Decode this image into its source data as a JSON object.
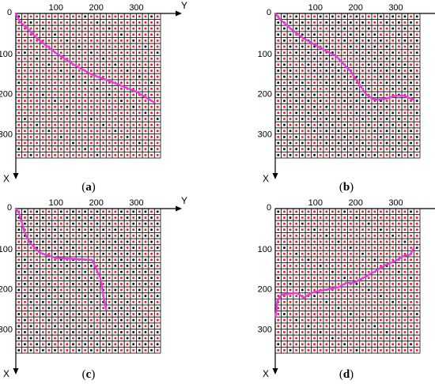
{
  "axes": {
    "x_label": "X",
    "y_label": "Y",
    "origin_label": "0",
    "y_ticks": [
      "100",
      "200",
      "300"
    ],
    "x_ticks": [
      "100",
      "200",
      "300"
    ]
  },
  "colors": {
    "path": "#e83ad8",
    "red_dot": "#e8202a",
    "black_dot": "#111111",
    "grid": "#222222"
  },
  "panels": [
    {
      "id": "a",
      "caption": "a",
      "mix": "mostly-red",
      "path": [
        [
          0,
          0
        ],
        [
          20,
          10
        ],
        [
          42,
          33
        ],
        [
          62,
          53
        ],
        [
          95,
          95
        ],
        [
          125,
          140
        ],
        [
          150,
          185
        ],
        [
          175,
          250
        ],
        [
          195,
          300
        ],
        [
          222,
          345
        ]
      ]
    },
    {
      "id": "b",
      "caption": "b",
      "mix": "alternating",
      "path": [
        [
          0,
          0
        ],
        [
          15,
          12
        ],
        [
          35,
          35
        ],
        [
          62,
          70
        ],
        [
          90,
          120
        ],
        [
          105,
          150
        ],
        [
          145,
          188
        ],
        [
          200,
          225
        ],
        [
          212,
          240
        ],
        [
          215,
          255
        ],
        [
          212,
          275
        ],
        [
          205,
          300
        ],
        [
          205,
          320
        ],
        [
          215,
          345
        ]
      ]
    },
    {
      "id": "c",
      "caption": "c",
      "mix": "alternating",
      "path": [
        [
          0,
          0
        ],
        [
          12,
          8
        ],
        [
          35,
          15
        ],
        [
          60,
          22
        ],
        [
          85,
          35
        ],
        [
          110,
          60
        ],
        [
          123,
          100
        ],
        [
          125,
          140
        ],
        [
          128,
          190
        ],
        [
          150,
          200
        ],
        [
          172,
          210
        ],
        [
          200,
          215
        ],
        [
          230,
          220
        ],
        [
          252,
          225
        ]
      ]
    },
    {
      "id": "d",
      "caption": "d",
      "mix": "mostly-red",
      "path": [
        [
          270,
          0
        ],
        [
          255,
          3
        ],
        [
          230,
          5
        ],
        [
          215,
          15
        ],
        [
          212,
          30
        ],
        [
          210,
          55
        ],
        [
          222,
          70
        ],
        [
          210,
          90
        ],
        [
          205,
          110
        ],
        [
          200,
          135
        ],
        [
          195,
          160
        ],
        [
          185,
          175
        ],
        [
          185,
          195
        ],
        [
          175,
          215
        ],
        [
          155,
          250
        ],
        [
          140,
          275
        ],
        [
          130,
          300
        ],
        [
          118,
          318
        ],
        [
          115,
          335
        ],
        [
          98,
          345
        ]
      ]
    }
  ]
}
